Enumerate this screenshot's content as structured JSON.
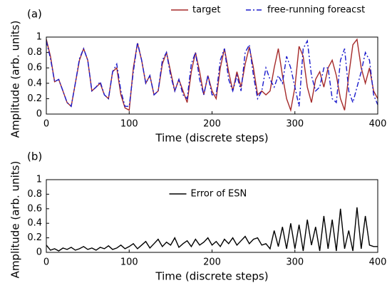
{
  "chart_data": [
    {
      "type": "line",
      "panel_label": "(a)",
      "xlabel": "Time (discrete steps)",
      "ylabel": "Amplitude (arb. units)",
      "xlim": [
        0,
        400
      ],
      "xticks": [
        0,
        100,
        200,
        300,
        400
      ],
      "ylim": [
        0,
        1
      ],
      "yticks": [
        0,
        0.2,
        0.4,
        0.6,
        0.8,
        1
      ],
      "legend": "above",
      "x": [
        0,
        5,
        10,
        15,
        20,
        25,
        30,
        35,
        40,
        45,
        50,
        55,
        60,
        65,
        70,
        75,
        80,
        85,
        90,
        95,
        100,
        105,
        110,
        115,
        120,
        125,
        130,
        135,
        140,
        145,
        150,
        155,
        160,
        165,
        170,
        175,
        180,
        185,
        190,
        195,
        200,
        205,
        210,
        215,
        220,
        225,
        230,
        235,
        240,
        245,
        250,
        255,
        260,
        265,
        270,
        275,
        280,
        285,
        290,
        295,
        300,
        305,
        310,
        315,
        320,
        325,
        330,
        335,
        340,
        345,
        350,
        355,
        360,
        365,
        370,
        375,
        380,
        385,
        390,
        395,
        400
      ],
      "series": [
        {
          "name": "target",
          "color": "#a52a2a",
          "linestyle": "solid",
          "values": [
            0.97,
            0.75,
            0.42,
            0.45,
            0.3,
            0.15,
            0.1,
            0.4,
            0.7,
            0.85,
            0.7,
            0.3,
            0.35,
            0.4,
            0.25,
            0.2,
            0.55,
            0.6,
            0.25,
            0.08,
            0.05,
            0.6,
            0.92,
            0.7,
            0.4,
            0.5,
            0.25,
            0.3,
            0.65,
            0.8,
            0.55,
            0.3,
            0.45,
            0.3,
            0.15,
            0.55,
            0.8,
            0.55,
            0.25,
            0.5,
            0.3,
            0.2,
            0.6,
            0.85,
            0.55,
            0.3,
            0.55,
            0.35,
            0.65,
            0.87,
            0.6,
            0.25,
            0.3,
            0.25,
            0.3,
            0.6,
            0.85,
            0.5,
            0.2,
            0.05,
            0.35,
            0.88,
            0.75,
            0.35,
            0.15,
            0.45,
            0.55,
            0.35,
            0.6,
            0.7,
            0.5,
            0.2,
            0.05,
            0.5,
            0.9,
            0.97,
            0.6,
            0.4,
            0.6,
            0.3,
            0.2
          ]
        },
        {
          "name": "free-running foreacst",
          "color": "#1a1acc",
          "linestyle": "dashdot",
          "values": [
            0.95,
            0.72,
            0.42,
            0.45,
            0.3,
            0.15,
            0.1,
            0.4,
            0.72,
            0.85,
            0.7,
            0.3,
            0.35,
            0.42,
            0.25,
            0.2,
            0.55,
            0.65,
            0.3,
            0.1,
            0.1,
            0.55,
            0.93,
            0.7,
            0.4,
            0.5,
            0.25,
            0.3,
            0.7,
            0.8,
            0.5,
            0.3,
            0.45,
            0.25,
            0.2,
            0.65,
            0.8,
            0.45,
            0.25,
            0.5,
            0.25,
            0.25,
            0.7,
            0.85,
            0.45,
            0.3,
            0.5,
            0.3,
            0.8,
            0.9,
            0.5,
            0.2,
            0.3,
            0.6,
            0.45,
            0.35,
            0.5,
            0.4,
            0.75,
            0.6,
            0.35,
            0.1,
            0.85,
            0.95,
            0.5,
            0.3,
            0.35,
            0.6,
            0.6,
            0.2,
            0.15,
            0.7,
            0.85,
            0.3,
            0.15,
            0.35,
            0.55,
            0.8,
            0.7,
            0.25,
            0.12
          ]
        }
      ]
    },
    {
      "type": "line",
      "panel_label": "(b)",
      "xlabel": "Time (discrete steps)",
      "ylabel": "Amplitude (arb. units)",
      "xlim": [
        0,
        400
      ],
      "xticks": [
        0,
        100,
        200,
        300,
        400
      ],
      "ylim": [
        0,
        1
      ],
      "yticks": [
        0,
        0.2,
        0.4,
        0.6,
        0.8,
        1
      ],
      "legend": "upper center",
      "x": [
        0,
        5,
        10,
        15,
        20,
        25,
        30,
        35,
        40,
        45,
        50,
        55,
        60,
        65,
        70,
        75,
        80,
        85,
        90,
        95,
        100,
        105,
        110,
        115,
        120,
        125,
        130,
        135,
        140,
        145,
        150,
        155,
        160,
        165,
        170,
        175,
        180,
        185,
        190,
        195,
        200,
        205,
        210,
        215,
        220,
        225,
        230,
        235,
        240,
        245,
        250,
        255,
        260,
        265,
        270,
        275,
        280,
        285,
        290,
        295,
        300,
        305,
        310,
        315,
        320,
        325,
        330,
        335,
        340,
        345,
        350,
        355,
        360,
        365,
        370,
        375,
        380,
        385,
        390,
        395,
        400
      ],
      "series": [
        {
          "name": "Error of ESN",
          "color": "#000000",
          "linestyle": "solid",
          "values": [
            0.1,
            0.03,
            0.05,
            0.02,
            0.06,
            0.04,
            0.07,
            0.03,
            0.05,
            0.08,
            0.04,
            0.06,
            0.03,
            0.07,
            0.05,
            0.09,
            0.04,
            0.06,
            0.1,
            0.05,
            0.08,
            0.12,
            0.05,
            0.1,
            0.15,
            0.06,
            0.12,
            0.18,
            0.08,
            0.14,
            0.1,
            0.2,
            0.07,
            0.12,
            0.16,
            0.08,
            0.18,
            0.1,
            0.14,
            0.2,
            0.1,
            0.15,
            0.08,
            0.18,
            0.12,
            0.2,
            0.1,
            0.16,
            0.22,
            0.12,
            0.18,
            0.2,
            0.1,
            0.12,
            0.05,
            0.3,
            0.08,
            0.35,
            0.05,
            0.4,
            0.05,
            0.38,
            0.02,
            0.45,
            0.1,
            0.35,
            0.02,
            0.5,
            0.05,
            0.45,
            0.02,
            0.6,
            0.05,
            0.3,
            0.02,
            0.62,
            0.05,
            0.5,
            0.1,
            0.08,
            0.08
          ]
        }
      ]
    }
  ]
}
